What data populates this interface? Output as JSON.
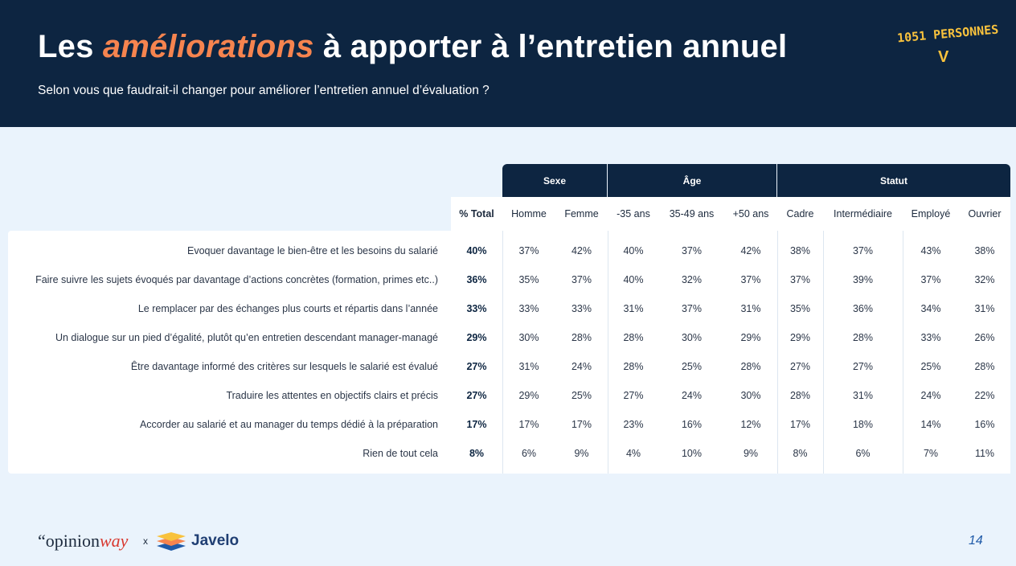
{
  "header": {
    "title_before": "Les ",
    "title_accent": "améliorations",
    "title_after": " à apporter à l’entretien annuel",
    "subtitle": "Selon vous que faudrait-il changer pour améliorer l’entretien annuel d’évaluation ?",
    "respondents": "1051 PERSONNES",
    "respondents_mark": "V"
  },
  "colors": {
    "navy": "#0d2541",
    "accent": "#f6844f",
    "respondents": "#f8c23d",
    "background": "#eaf3fc"
  },
  "table": {
    "groups": [
      {
        "label": "Sexe"
      },
      {
        "label": "Âge"
      },
      {
        "label": "Statut"
      }
    ],
    "columns": [
      "% Total",
      "Homme",
      "Femme",
      "-35 ans",
      "35-49 ans",
      "+50 ans",
      "Cadre",
      "Intermédiaire",
      "Employé",
      "Ouvrier"
    ],
    "rows": [
      {
        "label": "Evoquer davantage le bien-être et les besoins du salarié",
        "values": [
          "40%",
          "37%",
          "42%",
          "40%",
          "37%",
          "42%",
          "38%",
          "37%",
          "43%",
          "38%"
        ]
      },
      {
        "label": "Faire suivre les sujets évoqués par davantage d’actions concrètes (formation, primes etc..)",
        "values": [
          "36%",
          "35%",
          "37%",
          "40%",
          "32%",
          "37%",
          "37%",
          "39%",
          "37%",
          "32%"
        ]
      },
      {
        "label": "Le remplacer par des échanges plus courts et répartis dans l’année",
        "values": [
          "33%",
          "33%",
          "33%",
          "31%",
          "37%",
          "31%",
          "35%",
          "36%",
          "34%",
          "31%"
        ]
      },
      {
        "label": "Un dialogue sur un pied d’égalité, plutôt qu’en entretien descendant manager-managé",
        "values": [
          "29%",
          "30%",
          "28%",
          "28%",
          "30%",
          "29%",
          "29%",
          "28%",
          "33%",
          "26%"
        ]
      },
      {
        "label": "Être davantage informé des critères sur lesquels le salarié est évalué",
        "values": [
          "27%",
          "31%",
          "24%",
          "28%",
          "25%",
          "28%",
          "27%",
          "27%",
          "25%",
          "28%"
        ]
      },
      {
        "label": "Traduire les attentes en objectifs clairs et précis",
        "values": [
          "27%",
          "29%",
          "25%",
          "27%",
          "24%",
          "30%",
          "28%",
          "31%",
          "24%",
          "22%"
        ]
      },
      {
        "label": "Accorder au salarié et au manager du temps dédié à la préparation",
        "values": [
          "17%",
          "17%",
          "17%",
          "23%",
          "16%",
          "12%",
          "17%",
          "18%",
          "14%",
          "16%"
        ]
      },
      {
        "label": "Rien de tout cela",
        "values": [
          "8%",
          "6%",
          "9%",
          "4%",
          "10%",
          "9%",
          "8%",
          "6%",
          "7%",
          "11%"
        ]
      }
    ]
  },
  "footer": {
    "brand1_prefix": "“opinion",
    "brand1_suffix": "way",
    "separator": "x",
    "brand2": "Javelo",
    "page_number": "14"
  }
}
